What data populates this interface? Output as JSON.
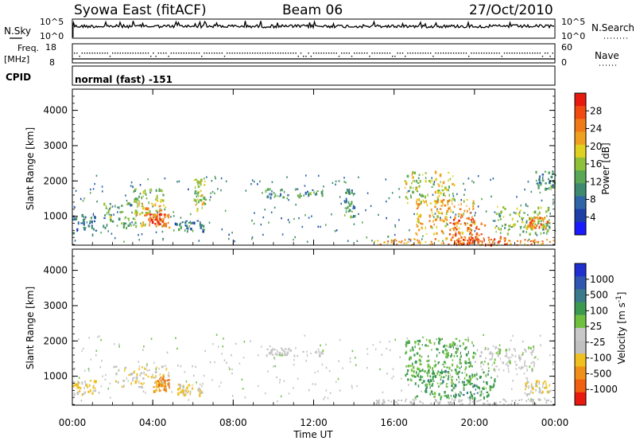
{
  "header": {
    "station": "Syowa East (fitACF)",
    "beam": "Beam 06",
    "date": "27/Oct/2010"
  },
  "top_panels": {
    "nsky_label": "N.Sky",
    "nsky_ticks": [
      "10^5",
      "10^0"
    ],
    "nsearch_label": "N.Search",
    "nsearch_ticks": [
      "10^5",
      "10^0"
    ],
    "freq_label_1": "Freq.",
    "freq_label_2": "[MHz]",
    "freq_ticks": [
      "18",
      "8"
    ],
    "nave_label": "Nave",
    "nave_ticks": [
      "60",
      "0"
    ],
    "cpid_label": "CPID",
    "cpid_value": "normal (fast) -151"
  },
  "chart_data": [
    {
      "type": "heatmap",
      "panel": "power",
      "ylabel": "Slant Range [km]",
      "ylim": [
        180,
        4600
      ],
      "yticks": [
        "1000",
        "2000",
        "3000",
        "4000"
      ],
      "colorbar_label": "Power [dB]",
      "colorbar_ticks": [
        "4",
        "8",
        "12",
        "16",
        "20",
        "24",
        "28"
      ],
      "colorbar_colors": [
        "#1a1aff",
        "#1f3fa8",
        "#2e66a8",
        "#3d8a70",
        "#58a855",
        "#8ec03a",
        "#e0d020",
        "#f0a020",
        "#f07a18",
        "#f04a10",
        "#e81a10"
      ],
      "echo_regions": [
        {
          "t0": 0.0,
          "t1": 1.2,
          "r0": 500,
          "r1": 1100,
          "power": 8
        },
        {
          "t0": 1.5,
          "t1": 3.2,
          "r0": 700,
          "r1": 1400,
          "power": 12
        },
        {
          "t0": 3.0,
          "t1": 4.8,
          "r0": 700,
          "r1": 1400,
          "power": 20
        },
        {
          "t0": 3.8,
          "t1": 4.6,
          "r0": 800,
          "r1": 1100,
          "power": 26
        },
        {
          "t0": 5.0,
          "t1": 6.5,
          "r0": 600,
          "r1": 900,
          "power": 8
        },
        {
          "t0": 3.0,
          "t1": 4.5,
          "r0": 1400,
          "r1": 1800,
          "power": 14
        },
        {
          "t0": 6.0,
          "t1": 6.6,
          "r0": 1200,
          "r1": 2100,
          "power": 16
        },
        {
          "t0": 9.5,
          "t1": 12.5,
          "r0": 1550,
          "r1": 1800,
          "power": 10
        },
        {
          "t0": 13.5,
          "t1": 14.0,
          "r0": 1000,
          "r1": 1800,
          "power": 10
        },
        {
          "t0": 16.5,
          "t1": 19.0,
          "r0": 1400,
          "r1": 2300,
          "power": 16
        },
        {
          "t0": 17.0,
          "t1": 20.0,
          "r0": 500,
          "r1": 1500,
          "power": 20
        },
        {
          "t0": 18.5,
          "t1": 20.5,
          "r0": 300,
          "r1": 1000,
          "power": 26
        },
        {
          "t0": 19.0,
          "t1": 21.5,
          "r0": 220,
          "r1": 450,
          "power": 28
        },
        {
          "t0": 21.0,
          "t1": 23.8,
          "r0": 500,
          "r1": 1300,
          "power": 14
        },
        {
          "t0": 22.6,
          "t1": 23.6,
          "r0": 700,
          "r1": 1000,
          "power": 24
        },
        {
          "t0": 23.0,
          "t1": 24.0,
          "r0": 1800,
          "r1": 2300,
          "power": 10
        }
      ]
    },
    {
      "type": "heatmap",
      "panel": "velocity",
      "ylabel": "Slant Range [km]",
      "xlabel": "Time UT",
      "ylim": [
        180,
        4600
      ],
      "yticks": [
        "1000",
        "2000",
        "3000",
        "4000"
      ],
      "xticks": [
        "00:00",
        "04:00",
        "08:00",
        "12:00",
        "16:00",
        "20:00",
        "00:00"
      ],
      "colorbar_label": "Velocity [m s^-1]",
      "colorbar_ticks": [
        "1000",
        "500",
        "100",
        "25",
        "-25",
        "-100",
        "-500",
        "-1000"
      ],
      "colorbar_colors": [
        "#2030d0",
        "#2f56b0",
        "#3a7a8a",
        "#3c9a50",
        "#70c040",
        "#c8c8c8",
        "#c0c0c0",
        "#f0c020",
        "#f09018",
        "#f06010",
        "#e81a10"
      ],
      "echo_regions": [
        {
          "t0": 0.0,
          "t1": 1.3,
          "r0": 500,
          "r1": 900,
          "velocity": -300
        },
        {
          "t0": 2.0,
          "t1": 4.8,
          "r0": 700,
          "r1": 1300,
          "velocity": -300
        },
        {
          "t0": 4.0,
          "t1": 4.8,
          "r0": 600,
          "r1": 1000,
          "velocity": -600
        },
        {
          "t0": 5.2,
          "t1": 6.5,
          "r0": 500,
          "r1": 800,
          "velocity": -300
        },
        {
          "t0": 9.5,
          "t1": 12.5,
          "r0": 1600,
          "r1": 1800,
          "velocity": 0
        },
        {
          "t0": 16.5,
          "t1": 20.0,
          "r0": 800,
          "r1": 2100,
          "velocity": 300
        },
        {
          "t0": 17.0,
          "t1": 21.0,
          "r0": 400,
          "r1": 1200,
          "velocity": 400
        },
        {
          "t0": 20.0,
          "t1": 23.0,
          "r0": 1200,
          "r1": 1900,
          "velocity": 0
        },
        {
          "t0": 22.5,
          "t1": 23.8,
          "r0": 500,
          "r1": 900,
          "velocity": -300
        }
      ]
    }
  ]
}
